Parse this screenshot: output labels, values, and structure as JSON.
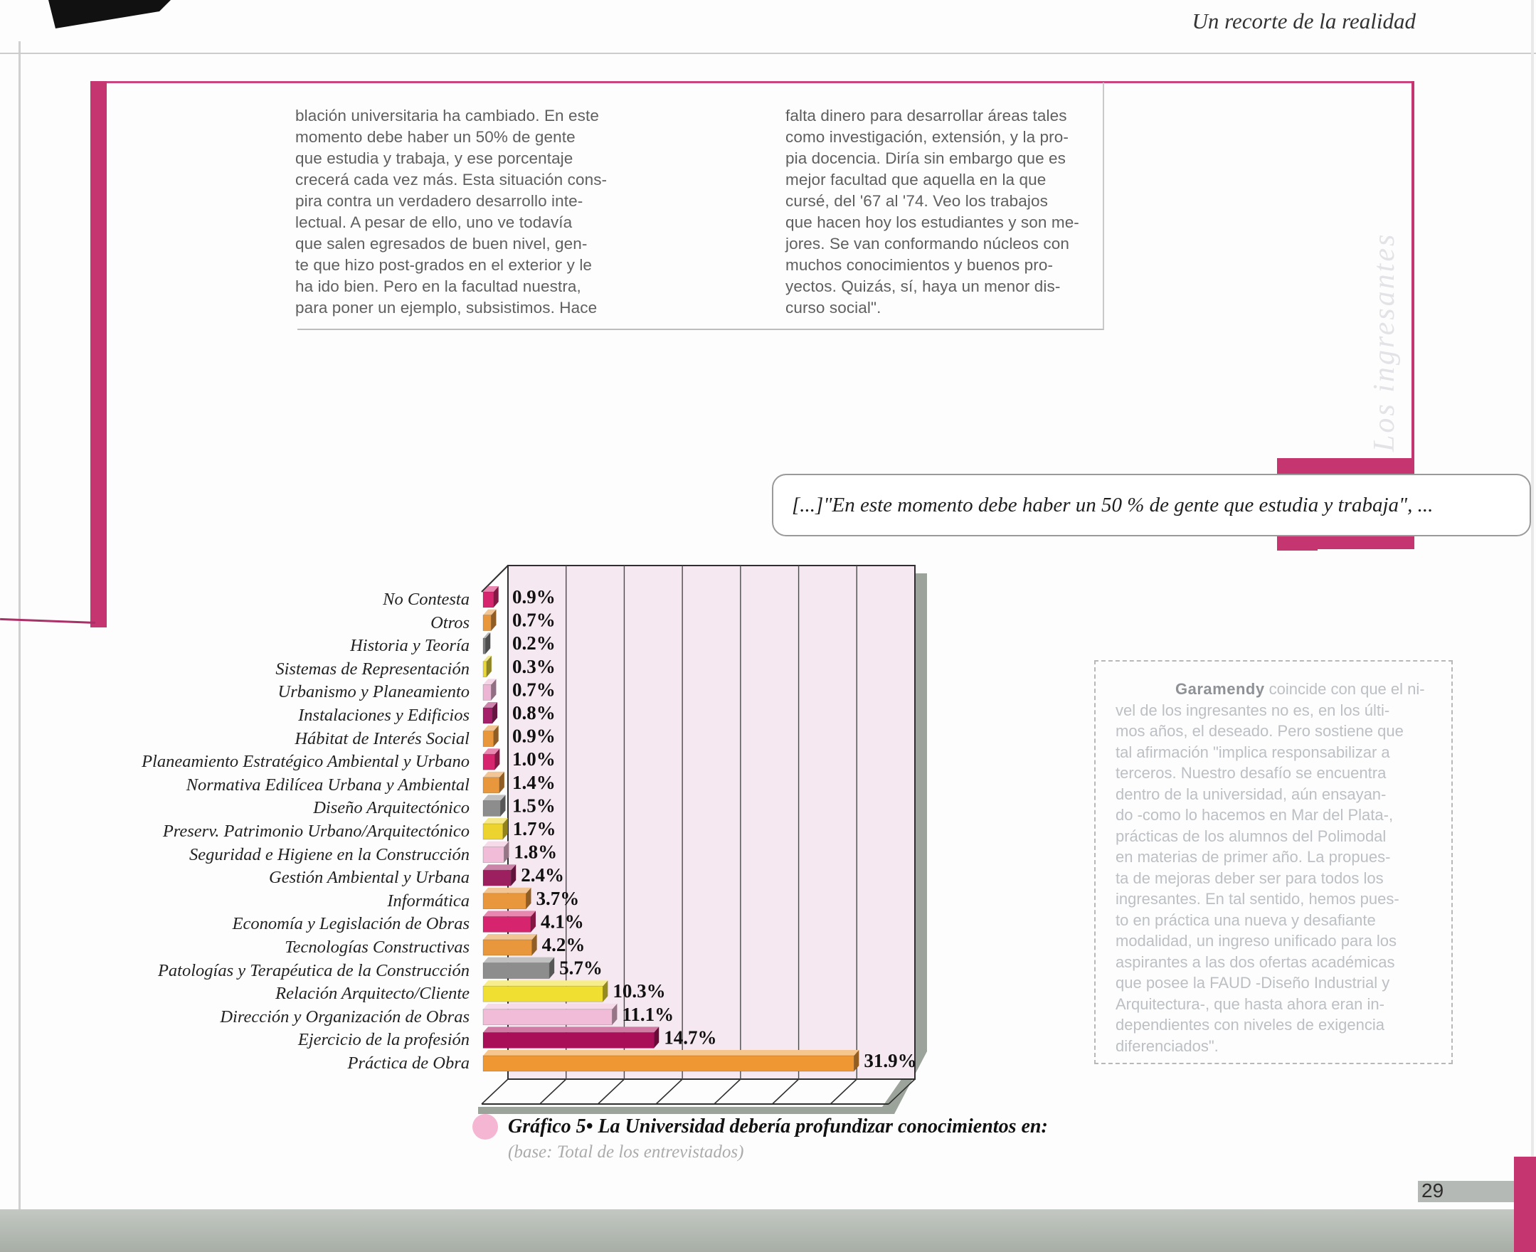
{
  "page": {
    "header": "Un recorte de la realidad",
    "side_label": "Los ingresantes",
    "page_number": "29",
    "accent_pink": "#c5356f"
  },
  "article": {
    "left_column": "blación universitaria ha cambiado. En este\nmomento debe haber un 50% de gente\nque estudia y trabaja, y ese porcentaje\ncrecerá cada vez más. Esta situación cons-\npira contra un verdadero desarrollo inte-\nlectual. A pesar de ello, uno ve todavía\nque salen egresados de buen nivel, gen-\nte que hizo post-grados en el exterior y le\nha ido bien. Pero en la facultad nuestra,\npara poner un ejemplo, subsistimos. Hace",
    "right_column": "falta dinero para desarrollar áreas tales\ncomo investigación, extensión, y la pro-\npia docencia. Diría sin embargo que es\nmejor facultad que aquella en la que\ncursé, del '67 al '74. Veo los trabajos\nque hacen hoy los estudiantes y son me-\njores. Se van conformando núcleos con\nmuchos conocimientos y buenos pro-\nyectos. Quizás, sí, haya un menor dis-\ncurso social\"."
  },
  "quote": "[...]\"En este momento debe haber un 50 % de gente que estudia y trabaja\", ...",
  "sidebar": {
    "lead": "Garamendy",
    "line1_rest": " coincide con que el ni-",
    "lines": "vel de los ingresantes no es, en los últi-\nmos años, el deseado. Pero sostiene que\ntal afirmación \"implica responsabilizar a\nterceros. Nuestro desafío se encuentra\ndentro de la universidad, aún ensayan-\ndo -como lo hacemos en Mar del Plata-,\nprácticas de los alumnos del Polimodal\nen materias de primer año. La propues-\nta de mejoras deber ser para todos los\ningresantes. En tal sentido, hemos pues-\nto en práctica una nueva y desafiante\nmodalidad, un ingreso unificado para los\naspirantes a las dos ofertas académicas\nque posee la FAUD -Diseño Industrial y\nArquitectura-, que hasta ahora eran in-\ndependientes con niveles de exigencia\ndiferenciados\"."
  },
  "chart_data": {
    "type": "bar",
    "orientation": "horizontal",
    "title": "Gráfico 5• La Universidad debería profundizar conocimientos en:",
    "base_note": "(base: Total de los entrevistados)",
    "xlim": [
      0,
      35
    ],
    "gridline_step_pct": 5,
    "grid": true,
    "plot_bg": "#f5e8f0",
    "shadow_color": "#9ba39b",
    "categories": [
      "No Contesta",
      "Otros",
      "Historia y Teoría",
      "Sistemas de Representación",
      "Urbanismo y Planeamiento",
      "Instalaciones y Edificios",
      "Hábitat de Interés Social",
      "Planeamiento Estratégico Ambiental y Urbano",
      "Normativa Edilícea Urbana y Ambiental",
      "Diseño Arquitectónico",
      "Preserv. Patrimonio Urbano/Arquitectónico",
      "Seguridad e Higiene en la Construcción",
      "Gestión Ambiental y Urbana",
      "Informática",
      "Economía y Legislación de Obras",
      "Tecnologías Constructivas",
      "Patologías y Terapéutica de la Construcción",
      "Relación Arquitecto/Cliente",
      "Dirección y Organización de Obras",
      "Ejercicio de la profesión",
      "Práctica de Obra"
    ],
    "values": [
      0.9,
      0.7,
      0.2,
      0.3,
      0.7,
      0.8,
      0.9,
      1.0,
      1.4,
      1.5,
      1.7,
      1.8,
      2.4,
      3.7,
      4.1,
      4.2,
      5.7,
      10.3,
      11.1,
      14.7,
      31.9
    ],
    "bar_colors": [
      "#d6256e",
      "#e8973c",
      "#7d7d7d",
      "#e8d63a",
      "#ecb5d4",
      "#a62069",
      "#e8973c",
      "#d6256e",
      "#e8973c",
      "#8d8d8d",
      "#ecd32e",
      "#f0bcd8",
      "#9c1f60",
      "#e8973c",
      "#d6256e",
      "#e8973c",
      "#8d8d8d",
      "#f0df30",
      "#f0bcd8",
      "#a80f58",
      "#ef9733"
    ]
  }
}
